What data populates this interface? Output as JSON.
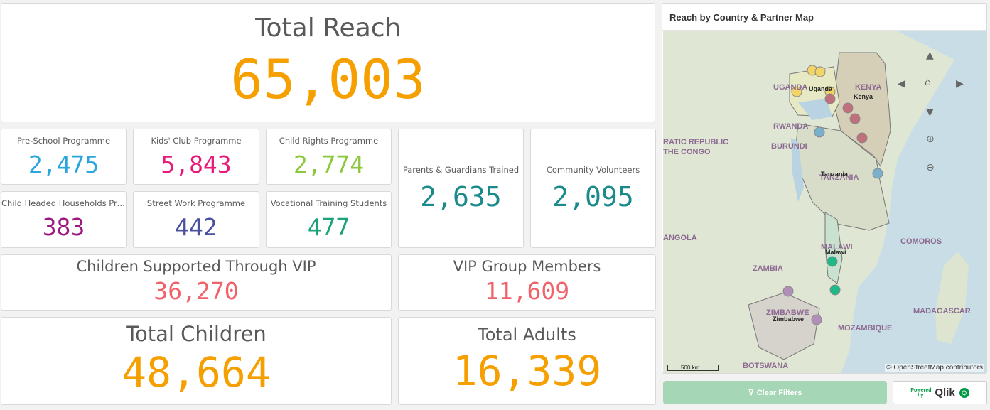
{
  "kpis": {
    "total_reach": {
      "label": "Total Reach",
      "value": "65,003",
      "color": "#f5a000"
    },
    "pre_school": {
      "label": "Pre-School Programme",
      "value": "2,475",
      "color": "#2aa6dd"
    },
    "kids_club": {
      "label": "Kids' Club Programme",
      "value": "5,843",
      "color": "#e8197a"
    },
    "child_rights": {
      "label": "Child Rights Programme",
      "value": "2,774",
      "color": "#8cc83c"
    },
    "parents": {
      "label": "Parents & Guardians Trained",
      "value": "2,635",
      "color": "#1a8a8a"
    },
    "volunteers": {
      "label": "Community Volunteers",
      "value": "2,095",
      "color": "#1a8a8a"
    },
    "child_headed": {
      "label": "Child Headed Households Pro...",
      "value": "383",
      "color": "#9c1a80"
    },
    "street_work": {
      "label": "Street Work Programme",
      "value": "442",
      "color": "#4a4f9e"
    },
    "vocational": {
      "label": "Vocational Training Students",
      "value": "477",
      "color": "#1aa27a"
    },
    "vip_children": {
      "label": "Children Supported Through VIP",
      "value": "36,270",
      "color": "#f0616a"
    },
    "vip_members": {
      "label": "VIP Group Members",
      "value": "11,609",
      "color": "#f0616a"
    },
    "total_children": {
      "label": "Total Children",
      "value": "48,664",
      "color": "#f5a000"
    },
    "total_adults": {
      "label": "Total Adults",
      "value": "16,339",
      "color": "#f5a000"
    }
  },
  "map": {
    "title": "Reach by Country & Partner Map",
    "country_labels": [
      "UGANDA",
      "KENYA",
      "RWANDA",
      "BURUNDI",
      "RATIC REPUBLIC",
      "THE CONGO",
      "TANZANIA",
      "ANGOLA",
      "ZAMBIA",
      "MALAWI",
      "COMOROS",
      "ZIMBABWE",
      "MOZAMBIQUE",
      "MADAGASCAR",
      "BOTSWANA"
    ],
    "city_labels": [
      "Uganda",
      "Kenya",
      "Tanzania",
      "Malawi",
      "Zimbabwe"
    ],
    "attribution": "© OpenStreetMap contributors",
    "scale": "500 km",
    "controls": [
      "pan-up-icon",
      "pan-left-icon",
      "home-icon",
      "pan-right-icon",
      "pan-down-icon",
      "zoom-in-icon",
      "zoom-out-icon"
    ]
  },
  "footer": {
    "clear_filters": "Clear Filters",
    "powered_by": "Powered by",
    "qlik": "Qlik"
  }
}
